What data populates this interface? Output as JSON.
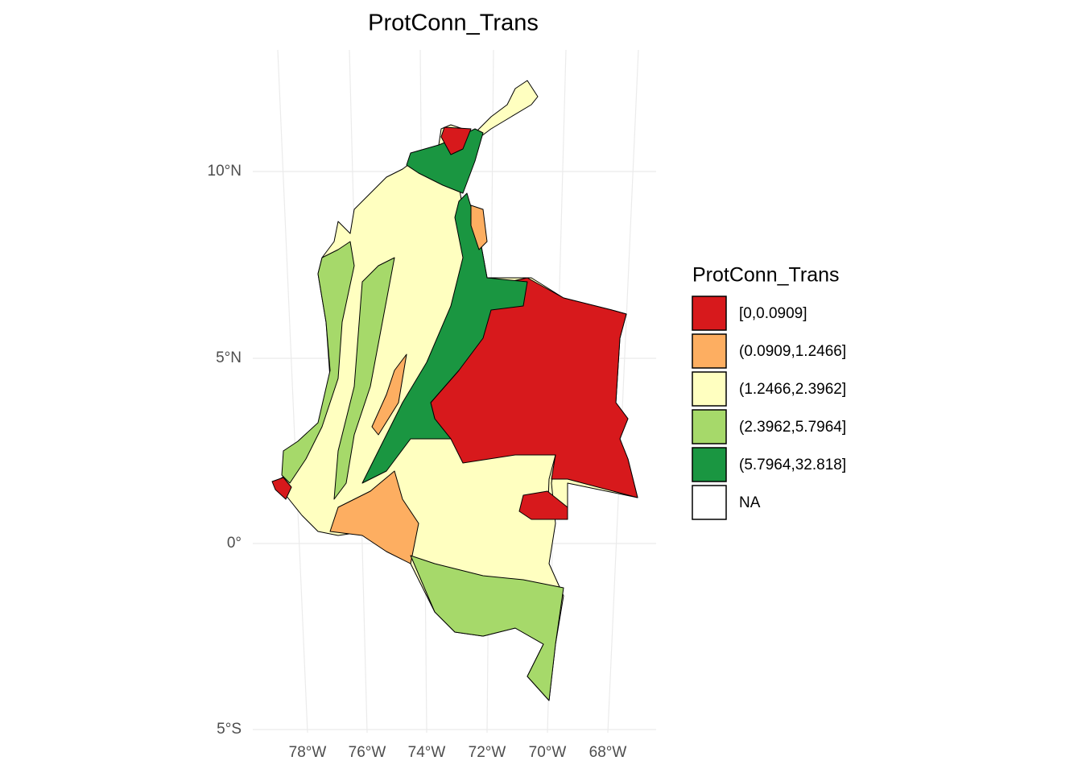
{
  "title": "ProtConn_Trans",
  "legend": {
    "title": "ProtConn_Trans",
    "items": [
      {
        "label": "[0,0.0909]",
        "color": "#d7191c"
      },
      {
        "label": "(0.0909,1.2466]",
        "color": "#fdae61"
      },
      {
        "label": "(1.2466,2.3962]",
        "color": "#ffffc0"
      },
      {
        "label": "(2.3962,5.7964]",
        "color": "#a6d96a"
      },
      {
        "label": "(5.7964,32.818]",
        "color": "#1a9641"
      },
      {
        "label": "NA",
        "color": "#ffffff"
      }
    ]
  },
  "x_labels": [
    "78°W",
    "76°W",
    "74°W",
    "72°W",
    "70°W",
    "68°W"
  ],
  "y_labels": [
    "10°N",
    "5°N",
    "0°",
    "5°S"
  ]
}
